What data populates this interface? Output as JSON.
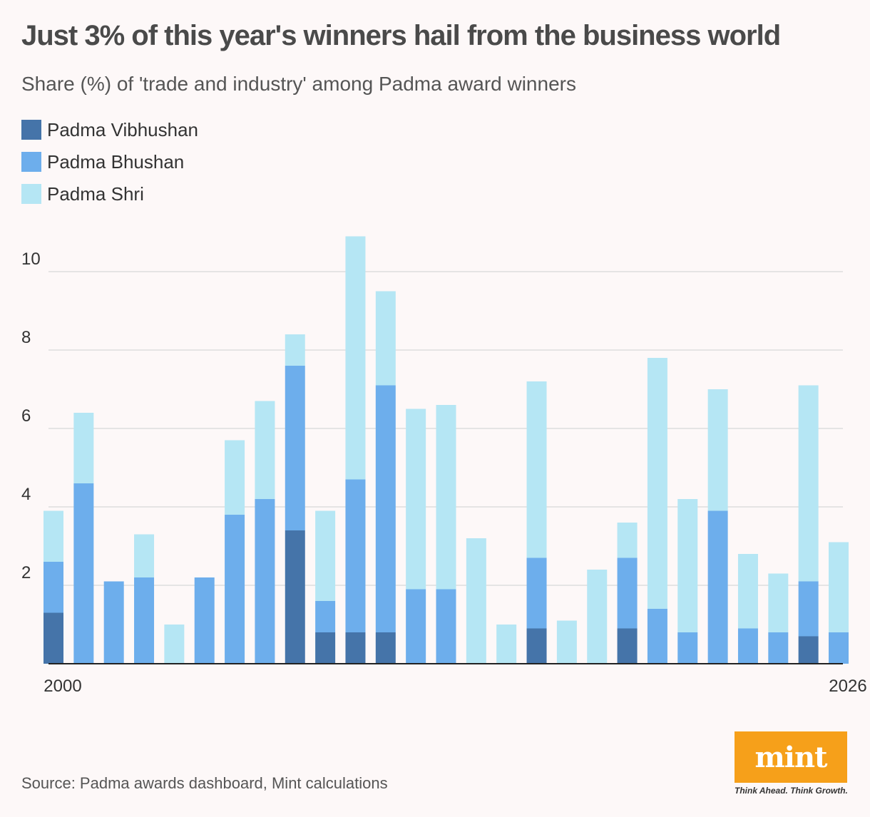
{
  "title": "Just 3% of this year's winners hail from the business world",
  "subtitle": "Share (%) of 'trade and industry' among Padma award winners",
  "source": "Source: Padma awards dashboard, Mint calculations",
  "logo": {
    "text": "mint",
    "tagline": "Think Ahead. Think Growth."
  },
  "colors": {
    "vibhushan": "#4574a9",
    "bhushan": "#6daeec",
    "shri": "#b5e6f4",
    "grid": "#dddddd",
    "axis": "#222222"
  },
  "chart_data": {
    "type": "bar",
    "stacked": true,
    "title": "Just 3% of this year's winners hail from the business world",
    "subtitle": "Share (%) of 'trade and industry' among Padma award winners",
    "xlabel": "",
    "ylabel": "",
    "ylim": [
      0,
      11
    ],
    "yticks": [
      2,
      4,
      6,
      8,
      10
    ],
    "grid": true,
    "legend_position": "top-left",
    "categories": [
      2000,
      2001,
      2002,
      2003,
      2004,
      2005,
      2006,
      2007,
      2008,
      2009,
      2010,
      2011,
      2012,
      2013,
      2014,
      2015,
      2016,
      2017,
      2018,
      2019,
      2020,
      2021,
      2022,
      2023,
      2024,
      2025,
      2026
    ],
    "x_tick_labels": [
      {
        "category": 2000,
        "label": "2000"
      },
      {
        "category": 2026,
        "label": "2026"
      }
    ],
    "series": [
      {
        "name": "Padma Vibhushan",
        "color": "#4574a9",
        "values": [
          1.3,
          0,
          0,
          0,
          0,
          0,
          0,
          0,
          3.4,
          0.8,
          0.8,
          0.8,
          0,
          0,
          0,
          0,
          0.9,
          0,
          0,
          0.9,
          0,
          0,
          0,
          0,
          0,
          0.7,
          0
        ]
      },
      {
        "name": "Padma Bhushan",
        "color": "#6daeec",
        "values": [
          1.3,
          4.6,
          2.1,
          2.2,
          0,
          2.2,
          3.8,
          4.2,
          4.2,
          0.8,
          3.9,
          6.3,
          1.9,
          1.9,
          0,
          0,
          1.8,
          0,
          0,
          1.8,
          1.4,
          0.8,
          3.9,
          0.9,
          0.8,
          1.4,
          0.8
        ]
      },
      {
        "name": "Padma Shri",
        "color": "#b5e6f4",
        "values": [
          1.3,
          1.8,
          0,
          1.1,
          1.0,
          0,
          1.9,
          2.5,
          0.8,
          2.3,
          6.2,
          2.4,
          4.6,
          4.7,
          3.2,
          1.0,
          4.5,
          1.1,
          2.4,
          0.9,
          6.4,
          3.4,
          3.1,
          1.9,
          1.5,
          5.0,
          2.3
        ]
      }
    ]
  }
}
